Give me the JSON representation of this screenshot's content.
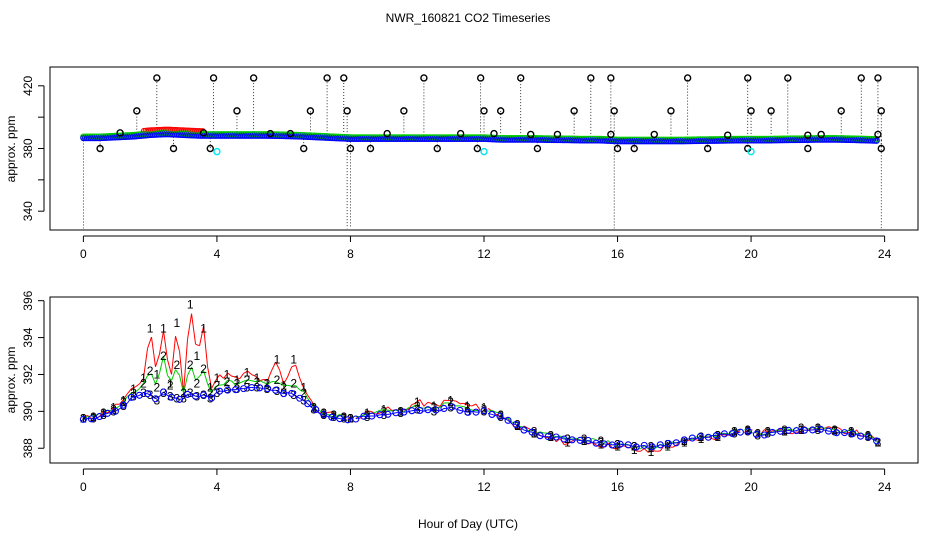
{
  "figure": {
    "title": "NWR_160821  CO2 Timeseries",
    "xlabel": "Hour of Day (UTC)"
  },
  "colors": {
    "series1": "#ff0000",
    "series2": "#00cc00",
    "series3": "#0000ff",
    "highlight": "#00e5ee",
    "outlier": "#000000"
  },
  "chart_data": [
    {
      "type": "scatter",
      "panel": "top",
      "ylabel": "approx. ppm",
      "xlim": [
        -1,
        25
      ],
      "ylim": [
        328,
        432
      ],
      "x_ticks": [
        0,
        4,
        8,
        12,
        16,
        20,
        24
      ],
      "x_tick_labels": [
        "0",
        "4",
        "8",
        "12",
        "16",
        "20",
        "24"
      ],
      "y_ticks": [
        340,
        380,
        420
      ],
      "y_tick_labels": [
        "340",
        "380",
        "420"
      ],
      "y_tick_marks": [
        340,
        360,
        380,
        400,
        420
      ],
      "baseline": {
        "x": [
          0,
          0.5,
          1,
          1.5,
          2,
          2.5,
          3,
          3.5,
          4,
          4.5,
          5,
          5.5,
          6,
          6.5,
          7,
          7.5,
          8,
          8.5,
          9,
          9.5,
          10,
          10.5,
          11,
          11.5,
          12,
          12.5,
          13,
          13.5,
          14,
          14.5,
          15,
          15.5,
          16,
          16.5,
          17,
          17.5,
          18,
          18.5,
          19,
          19.5,
          20,
          20.5,
          21,
          21.5,
          22,
          22.5,
          23,
          23.5,
          23.8
        ],
        "y": [
          387,
          387,
          387.5,
          388,
          389,
          389.5,
          389,
          388.5,
          388.5,
          388.5,
          388.5,
          388.5,
          388.3,
          388,
          387.5,
          387,
          386.5,
          386.5,
          386.5,
          386.5,
          386.5,
          386.5,
          386.5,
          386.5,
          386.5,
          386,
          386,
          386,
          385.8,
          385.7,
          385.5,
          385.5,
          385,
          385,
          385,
          385,
          385,
          385.2,
          385.3,
          385.5,
          385.5,
          385.5,
          385.7,
          385.8,
          386,
          386,
          385.8,
          385.5,
          385.3
        ]
      },
      "high_outliers": {
        "x": [
          1.6,
          2.2,
          3.9,
          4.6,
          5.1,
          6.8,
          7.3,
          7.8,
          7.9,
          9.6,
          10.2,
          11.9,
          12.0,
          12.5,
          13.1,
          14.7,
          15.2,
          15.8,
          15.9,
          17.6,
          18.1,
          19.9,
          20.0,
          20.6,
          21.1,
          22.7,
          23.3,
          23.8,
          23.9
        ],
        "y": [
          404,
          425,
          425,
          404,
          425,
          404,
          425,
          425,
          404,
          404,
          425,
          425,
          404,
          404,
          425,
          404,
          425,
          425,
          404,
          404,
          425,
          425,
          404,
          404,
          425,
          404,
          425,
          425,
          404
        ]
      },
      "mid_outliers": {
        "x": [
          1.1,
          3.6,
          5.6,
          6.2,
          9.1,
          11.3,
          12.3,
          13.4,
          14.2,
          15.8,
          17.1,
          19.3,
          21.7,
          22.1,
          23.8
        ],
        "y": [
          390,
          390,
          389.5,
          389.5,
          389.5,
          389.5,
          389.5,
          389,
          389,
          389,
          389,
          388.5,
          388.5,
          389,
          389
        ]
      },
      "low_outliers": {
        "x": [
          0.5,
          2.7,
          3.8,
          6.6,
          8.0,
          8.6,
          10.6,
          11.8,
          13.6,
          16.0,
          16.5,
          18.7,
          19.9,
          21.7,
          23.9
        ],
        "y": [
          380,
          380,
          380,
          380,
          380,
          380,
          380,
          380,
          380,
          380,
          380,
          380,
          380,
          380,
          380
        ]
      },
      "cyan_points": {
        "x": [
          4.0,
          12.0,
          20.0
        ],
        "y": [
          378,
          378,
          378
        ]
      }
    },
    {
      "type": "line",
      "panel": "bottom",
      "ylabel": "approx. ppm",
      "xlim": [
        -1,
        25
      ],
      "ylim": [
        387.2,
        396.2
      ],
      "x_ticks": [
        0,
        4,
        8,
        12,
        16,
        20,
        24
      ],
      "x_tick_labels": [
        "0",
        "4",
        "8",
        "12",
        "16",
        "20",
        "24"
      ],
      "y_ticks": [
        388,
        390,
        392,
        394,
        396
      ],
      "y_tick_labels": [
        "388",
        "390",
        "392",
        "394",
        "396"
      ],
      "series": [
        {
          "name": "1",
          "marker": "1",
          "color": "#ff0000",
          "x": [
            0,
            0.3,
            0.6,
            0.9,
            1.2,
            1.5,
            1.8,
            2.0,
            2.2,
            2.4,
            2.6,
            2.8,
            3.0,
            3.2,
            3.4,
            3.6,
            3.8,
            4.0,
            4.3,
            4.6,
            4.9,
            5.2,
            5.5,
            5.8,
            6.0,
            6.3,
            6.6,
            6.9,
            7.2,
            7.5,
            7.8,
            8.0,
            8.5,
            9.0,
            9.5,
            10.0,
            10.5,
            11.0,
            11.5,
            12.0,
            12.5,
            13.0,
            13.5,
            14.0,
            14.5,
            15.0,
            15.5,
            16.0,
            16.5,
            17.0,
            17.5,
            18.0,
            18.5,
            19.0,
            19.5,
            19.9,
            20.2,
            20.5,
            21.0,
            21.5,
            22.0,
            22.5,
            23.0,
            23.5,
            23.8
          ],
          "y": [
            389.6,
            389.7,
            389.9,
            390.2,
            390.6,
            391.2,
            391.8,
            394.5,
            392.0,
            394.5,
            391.5,
            394.8,
            391.0,
            395.8,
            393.0,
            394.5,
            391.3,
            391.8,
            392.0,
            391.7,
            392.1,
            391.8,
            391.5,
            392.8,
            391.4,
            392.8,
            391.3,
            390.2,
            389.9,
            389.8,
            389.7,
            389.6,
            389.9,
            390.1,
            390.0,
            390.5,
            390.3,
            390.6,
            390.3,
            390.2,
            389.8,
            389.2,
            388.8,
            388.6,
            388.3,
            388.4,
            388.2,
            388.1,
            387.9,
            387.8,
            388.1,
            388.3,
            388.5,
            388.6,
            388.9,
            389.0,
            388.8,
            388.9,
            388.9,
            389.0,
            389.1,
            389.0,
            388.9,
            388.7,
            388.3
          ]
        },
        {
          "name": "2",
          "marker": "2",
          "color": "#00cc00",
          "x": [
            0,
            0.3,
            0.6,
            0.9,
            1.2,
            1.5,
            1.8,
            2.0,
            2.2,
            2.4,
            2.6,
            2.8,
            3.0,
            3.2,
            3.4,
            3.6,
            3.8,
            4.0,
            4.3,
            4.6,
            4.9,
            5.2,
            5.5,
            5.8,
            6.0,
            6.3,
            6.6,
            6.9,
            7.2,
            7.5,
            7.8,
            8.0,
            8.5,
            9.0,
            9.5,
            10.0,
            10.5,
            11.0,
            11.5,
            12.0,
            12.5,
            13.0,
            13.5,
            14.0,
            14.5,
            15.0,
            15.5,
            16.0,
            16.5,
            17.0,
            17.5,
            18.0,
            18.5,
            19.0,
            19.5,
            19.9,
            20.2,
            20.5,
            21.0,
            21.5,
            22.0,
            22.5,
            23.0,
            23.5,
            23.8
          ],
          "y": [
            389.6,
            389.7,
            389.9,
            390.1,
            390.5,
            391.0,
            391.5,
            392.2,
            391.3,
            393.0,
            391.4,
            392.5,
            391.0,
            392.5,
            391.5,
            392.3,
            391.0,
            391.4,
            391.6,
            391.5,
            391.7,
            391.6,
            391.5,
            391.7,
            391.3,
            391.5,
            391.0,
            390.2,
            389.9,
            389.8,
            389.7,
            389.6,
            389.8,
            390.0,
            390.0,
            390.3,
            390.2,
            390.5,
            390.2,
            390.1,
            389.8,
            389.3,
            388.9,
            388.7,
            388.5,
            388.5,
            388.4,
            388.2,
            388.1,
            388.0,
            388.2,
            388.4,
            388.6,
            388.7,
            388.9,
            389.0,
            388.8,
            388.9,
            389.0,
            389.1,
            389.1,
            389.0,
            388.9,
            388.7,
            388.3
          ]
        },
        {
          "name": "3",
          "marker": "3",
          "color": "#0000ff",
          "x": [
            0,
            0.3,
            0.6,
            0.9,
            1.2,
            1.5,
            1.8,
            2.0,
            2.2,
            2.4,
            2.6,
            2.8,
            3.0,
            3.2,
            3.4,
            3.6,
            3.8,
            4.0,
            4.3,
            4.6,
            4.9,
            5.2,
            5.5,
            5.8,
            6.0,
            6.3,
            6.6,
            6.9,
            7.2,
            7.5,
            7.8,
            8.0,
            8.5,
            9.0,
            9.5,
            10.0,
            10.5,
            11.0,
            11.5,
            12.0,
            12.5,
            13.0,
            13.5,
            14.0,
            14.5,
            15.0,
            15.5,
            16.0,
            16.5,
            17.0,
            17.5,
            18.0,
            18.5,
            19.0,
            19.5,
            19.9,
            20.2,
            20.5,
            21.0,
            21.5,
            22.0,
            22.5,
            23.0,
            23.5,
            23.8
          ],
          "y": [
            389.6,
            389.6,
            389.8,
            390.0,
            390.3,
            390.8,
            391.0,
            390.9,
            390.6,
            391.0,
            390.8,
            390.7,
            390.7,
            391.0,
            390.8,
            390.9,
            390.7,
            391.0,
            391.2,
            391.2,
            391.3,
            391.3,
            391.2,
            391.1,
            391.0,
            390.9,
            390.6,
            390.1,
            389.8,
            389.7,
            389.6,
            389.6,
            389.7,
            389.8,
            389.9,
            390.1,
            390.0,
            390.2,
            390.0,
            390.0,
            389.7,
            389.2,
            388.8,
            388.6,
            388.5,
            388.4,
            388.3,
            388.2,
            388.1,
            388.1,
            388.2,
            388.4,
            388.6,
            388.7,
            388.8,
            388.9,
            388.7,
            388.8,
            388.9,
            389.0,
            389.0,
            388.9,
            388.8,
            388.6,
            388.3
          ]
        }
      ]
    }
  ]
}
